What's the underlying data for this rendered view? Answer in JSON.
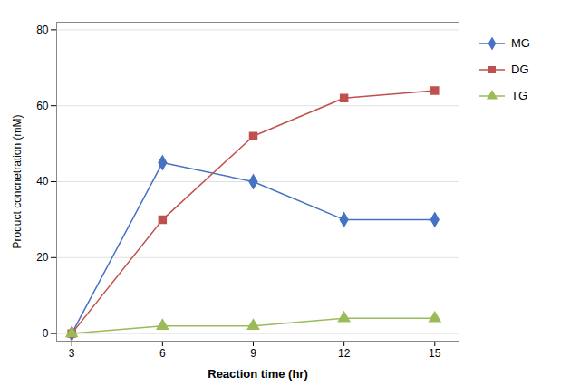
{
  "chart_data": {
    "type": "line",
    "x": [
      3,
      6,
      9,
      12,
      15
    ],
    "series": [
      {
        "name": "MG",
        "color": "#4472C4",
        "marker": "diamond",
        "values": [
          0,
          45,
          40,
          30,
          30
        ]
      },
      {
        "name": "DG",
        "color": "#C0504D",
        "marker": "square",
        "values": [
          0,
          30,
          52,
          62,
          64
        ]
      },
      {
        "name": "TG",
        "color": "#9BBB59",
        "marker": "triangle",
        "values": [
          0,
          2,
          2,
          4,
          4
        ]
      }
    ],
    "xlabel": "Reaction time (hr)",
    "ylabel": "Product concnetration (mM)",
    "xlim": [
      2.5,
      15.8
    ],
    "ylim": [
      -2,
      82
    ],
    "xticks": [
      3,
      6,
      9,
      12,
      15
    ],
    "yticks": [
      0,
      20,
      40,
      60,
      80
    ],
    "grid": true,
    "legend": "right"
  }
}
